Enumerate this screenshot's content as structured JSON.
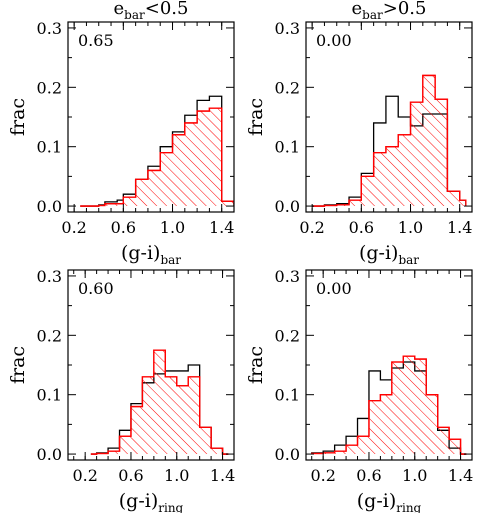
{
  "chart_data": [
    {
      "type": "step",
      "title": {
        "base": "e",
        "sub": "bar",
        "rest": "<0.5"
      },
      "annotation": "0.65",
      "ylabel": "frac",
      "xlabel": {
        "base": "(g-i)",
        "sub": "bar"
      },
      "xlim": [
        0.15,
        1.5
      ],
      "ylim": [
        -0.01,
        0.31
      ],
      "xticks": [
        "0.2",
        "0.6",
        "1.0",
        "1.4"
      ],
      "xtick_values": [
        0.2,
        0.6,
        1.0,
        1.4
      ],
      "yticks": [
        "0.0",
        "0.1",
        "0.2",
        "0.3"
      ],
      "ytick_values": [
        0.0,
        0.1,
        0.2,
        0.3
      ],
      "bin_edges": [
        0.25,
        0.3,
        0.35,
        0.4,
        0.45,
        0.5,
        0.55,
        0.6,
        0.65,
        0.7,
        0.75,
        0.8,
        0.85,
        0.9,
        0.95,
        1.0,
        1.05,
        1.1,
        1.15,
        1.2,
        1.25,
        1.3,
        1.35,
        1.4,
        1.45,
        1.5
      ],
      "series": [
        {
          "color": "#000000",
          "style": "line",
          "values": [
            0.0,
            0.0,
            0.0,
            0.002,
            0.007,
            0.007,
            0.01,
            0.02,
            0.02,
            0.045,
            0.045,
            0.067,
            0.067,
            0.1,
            0.1,
            0.125,
            0.125,
            0.153,
            0.153,
            0.178,
            0.178,
            0.185,
            0.185,
            0.008,
            0.008
          ]
        },
        {
          "color": "#ff0000",
          "style": "hatched",
          "values": [
            0.0,
            0.0,
            0.0,
            0.001,
            0.004,
            0.004,
            0.004,
            0.015,
            0.015,
            0.045,
            0.045,
            0.06,
            0.06,
            0.09,
            0.09,
            0.12,
            0.12,
            0.14,
            0.14,
            0.16,
            0.16,
            0.165,
            0.165,
            0.008,
            0.008
          ]
        }
      ]
    },
    {
      "type": "step",
      "title": {
        "base": "e",
        "sub": "bar",
        "rest": ">0.5"
      },
      "annotation": "0.00",
      "ylabel": "frac",
      "xlabel": {
        "base": "(g-i)",
        "sub": "bar"
      },
      "xlim": [
        0.15,
        1.5
      ],
      "ylim": [
        -0.01,
        0.31
      ],
      "xticks": [
        "0.2",
        "0.6",
        "1.0",
        "1.4"
      ],
      "xtick_values": [
        0.2,
        0.6,
        1.0,
        1.4
      ],
      "yticks": [
        "0.0",
        "0.1",
        "0.2",
        "0.3"
      ],
      "ytick_values": [
        0.0,
        0.1,
        0.2,
        0.3
      ],
      "bin_edges": [
        0.2,
        0.25,
        0.3,
        0.35,
        0.4,
        0.45,
        0.5,
        0.55,
        0.6,
        0.65,
        0.7,
        0.75,
        0.8,
        0.85,
        0.9,
        0.95,
        1.0,
        1.05,
        1.1,
        1.15,
        1.2,
        1.25,
        1.3,
        1.35,
        1.4,
        1.45
      ],
      "series": [
        {
          "color": "#000000",
          "style": "line",
          "values": [
            0.0,
            0.0,
            0.002,
            0.002,
            0.004,
            0.004,
            0.015,
            0.015,
            0.055,
            0.055,
            0.14,
            0.14,
            0.185,
            0.185,
            0.15,
            0.15,
            0.135,
            0.135,
            0.155,
            0.155,
            0.155,
            0.155,
            0.025,
            0.025,
            0.01
          ]
        },
        {
          "color": "#ff0000",
          "style": "hatched",
          "values": [
            0.0,
            0.0,
            0.001,
            0.001,
            0.002,
            0.002,
            0.01,
            0.01,
            0.05,
            0.05,
            0.09,
            0.09,
            0.1,
            0.1,
            0.12,
            0.12,
            0.175,
            0.175,
            0.22,
            0.22,
            0.18,
            0.18,
            0.025,
            0.025,
            0.01
          ]
        }
      ]
    },
    {
      "type": "step",
      "annotation": "0.60",
      "ylabel": "frac",
      "xlabel": {
        "base": "(g-i)",
        "sub": "ring"
      },
      "xlim": [
        0.05,
        1.5
      ],
      "ylim": [
        -0.01,
        0.31
      ],
      "xticks": [
        "0.2",
        "0.6",
        "1.0",
        "1.4"
      ],
      "xtick_values": [
        0.2,
        0.6,
        1.0,
        1.4
      ],
      "yticks": [
        "0.0",
        "0.1",
        "0.2",
        "0.3"
      ],
      "ytick_values": [
        0.0,
        0.1,
        0.2,
        0.3
      ],
      "bin_edges": [
        0.25,
        0.3,
        0.35,
        0.4,
        0.45,
        0.5,
        0.55,
        0.6,
        0.65,
        0.7,
        0.75,
        0.8,
        0.85,
        0.9,
        0.95,
        1.0,
        1.05,
        1.1,
        1.15,
        1.2,
        1.25,
        1.3,
        1.35,
        1.4,
        1.45
      ],
      "series": [
        {
          "color": "#000000",
          "style": "line",
          "values": [
            0.0,
            0.002,
            0.002,
            0.01,
            0.01,
            0.04,
            0.04,
            0.085,
            0.085,
            0.12,
            0.12,
            0.135,
            0.135,
            0.14,
            0.14,
            0.14,
            0.14,
            0.15,
            0.15,
            0.045,
            0.045,
            0.01,
            0.01,
            0.0
          ]
        },
        {
          "color": "#ff0000",
          "style": "hatched",
          "values": [
            0.0,
            0.001,
            0.001,
            0.005,
            0.005,
            0.03,
            0.03,
            0.08,
            0.08,
            0.13,
            0.13,
            0.175,
            0.175,
            0.13,
            0.13,
            0.115,
            0.115,
            0.13,
            0.13,
            0.045,
            0.045,
            0.01,
            0.01,
            0.0
          ]
        }
      ]
    },
    {
      "type": "step",
      "annotation": "0.00",
      "ylabel": "frac",
      "xlabel": {
        "base": "(g-i)",
        "sub": "ring"
      },
      "xlim": [
        0.05,
        1.5
      ],
      "ylim": [
        -0.01,
        0.31
      ],
      "xticks": [
        "0.2",
        "0.6",
        "1.0",
        "1.4"
      ],
      "xtick_values": [
        0.2,
        0.6,
        1.0,
        1.4
      ],
      "yticks": [
        "0.0",
        "0.1",
        "0.2",
        "0.3"
      ],
      "ytick_values": [
        0.0,
        0.1,
        0.2,
        0.3
      ],
      "bin_edges": [
        0.1,
        0.15,
        0.2,
        0.25,
        0.3,
        0.35,
        0.4,
        0.45,
        0.5,
        0.55,
        0.6,
        0.65,
        0.7,
        0.75,
        0.8,
        0.85,
        0.9,
        0.95,
        1.0,
        1.05,
        1.1,
        1.15,
        1.2,
        1.25,
        1.3,
        1.35,
        1.4,
        1.45
      ],
      "series": [
        {
          "color": "#000000",
          "style": "line",
          "values": [
            0.002,
            0.002,
            0.005,
            0.005,
            0.015,
            0.015,
            0.03,
            0.03,
            0.06,
            0.06,
            0.14,
            0.14,
            0.125,
            0.125,
            0.145,
            0.145,
            0.155,
            0.155,
            0.14,
            0.14,
            0.1,
            0.1,
            0.04,
            0.04,
            0.01,
            0.01,
            0.0
          ]
        },
        {
          "color": "#ff0000",
          "style": "hatched",
          "values": [
            0.001,
            0.001,
            0.002,
            0.002,
            0.005,
            0.005,
            0.015,
            0.015,
            0.03,
            0.03,
            0.09,
            0.09,
            0.1,
            0.1,
            0.155,
            0.155,
            0.165,
            0.165,
            0.16,
            0.16,
            0.1,
            0.1,
            0.045,
            0.045,
            0.025,
            0.025,
            0.0
          ]
        }
      ]
    }
  ]
}
